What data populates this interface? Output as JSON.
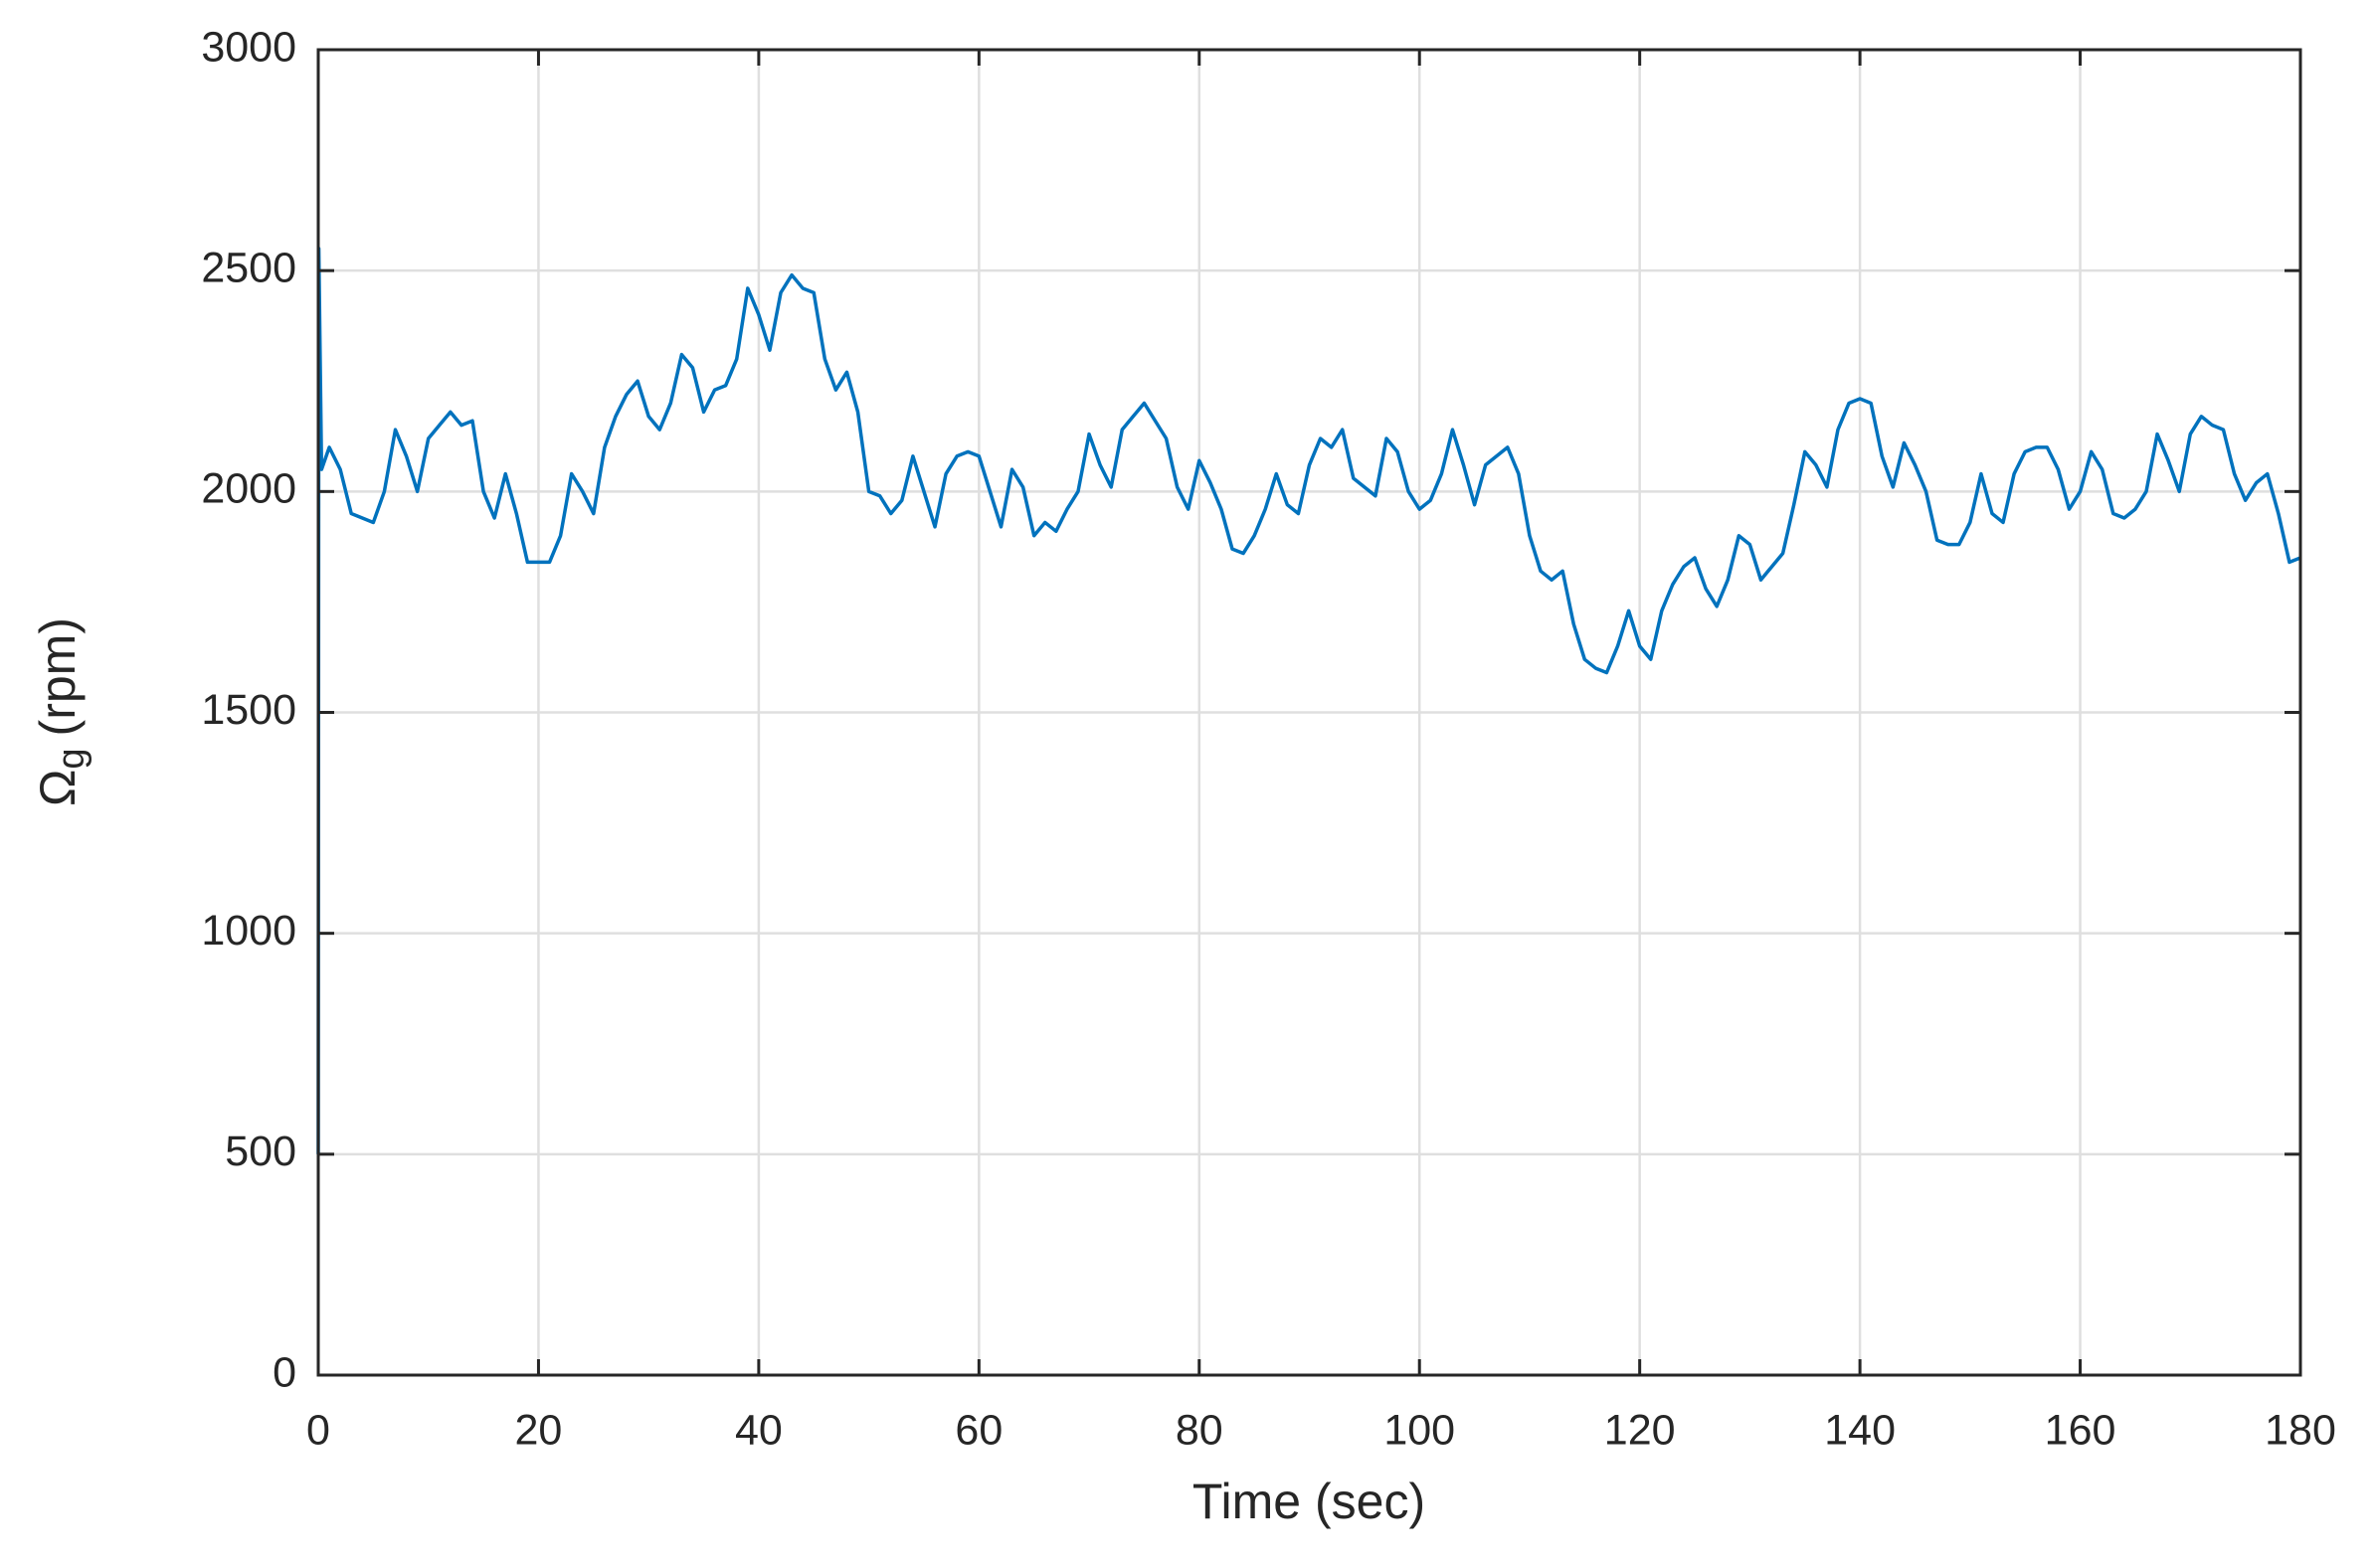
{
  "chart_data": {
    "type": "line",
    "x_label": "Time (sec)",
    "y_label": {
      "symbol": "Ω",
      "subscript": "g",
      "unit": "(rpm)"
    },
    "x": [
      0,
      0.05,
      0.3,
      1,
      2,
      3,
      4,
      5,
      6,
      7,
      8,
      9,
      10,
      11,
      12,
      13,
      14,
      15,
      16,
      17,
      18,
      19,
      20,
      21,
      22,
      23,
      24,
      25,
      26,
      27,
      28,
      29,
      30,
      31,
      32,
      33,
      34,
      35,
      36,
      37,
      38,
      39,
      40,
      41,
      42,
      43,
      44,
      45,
      46,
      47,
      48,
      49,
      50,
      51,
      52,
      53,
      54,
      55,
      56,
      57,
      58,
      59,
      60,
      61,
      62,
      63,
      64,
      65,
      66,
      67,
      68,
      69,
      70,
      71,
      72,
      73,
      74,
      75,
      76,
      77,
      78,
      79,
      80,
      81,
      82,
      83,
      84,
      85,
      86,
      87,
      88,
      89,
      90,
      91,
      92,
      93,
      94,
      95,
      96,
      97,
      98,
      99,
      100,
      101,
      102,
      103,
      104,
      105,
      106,
      107,
      108,
      109,
      110,
      111,
      112,
      113,
      114,
      115,
      116,
      117,
      118,
      119,
      120,
      121,
      122,
      123,
      124,
      125,
      126,
      127,
      128,
      129,
      130,
      131,
      132,
      133,
      134,
      135,
      136,
      137,
      138,
      139,
      140,
      141,
      142,
      143,
      144,
      145,
      146,
      147,
      148,
      149,
      150,
      151,
      152,
      153,
      154,
      155,
      156,
      157,
      158,
      159,
      160,
      161,
      162,
      163,
      164,
      165,
      166,
      167,
      168,
      169,
      170,
      171,
      172,
      173,
      174,
      175,
      176,
      177,
      178,
      179,
      180
    ],
    "series": [
      {
        "color": "#0072bd",
        "values": [
          500,
          2550,
          2050,
          2100,
          2050,
          1950,
          1940,
          1930,
          2000,
          2140,
          2080,
          2000,
          2120,
          2150,
          2180,
          2150,
          2160,
          2000,
          1940,
          2040,
          1950,
          1840,
          1840,
          1840,
          1900,
          2040,
          2000,
          1950,
          2100,
          2170,
          2220,
          2250,
          2170,
          2140,
          2200,
          2310,
          2280,
          2180,
          2230,
          2240,
          2300,
          2460,
          2400,
          2320,
          2450,
          2490,
          2460,
          2450,
          2300,
          2230,
          2270,
          2180,
          2000,
          1990,
          1950,
          1980,
          2080,
          2000,
          1920,
          2040,
          2080,
          2090,
          2080,
          2000,
          1920,
          2050,
          2010,
          1900,
          1930,
          1910,
          1960,
          2000,
          2130,
          2060,
          2010,
          2140,
          2170,
          2200,
          2160,
          2120,
          2010,
          1960,
          2070,
          2020,
          1960,
          1870,
          1860,
          1900,
          1960,
          2040,
          1970,
          1950,
          2060,
          2120,
          2100,
          2140,
          2030,
          2010,
          1990,
          2120,
          2090,
          2000,
          1960,
          1980,
          2040,
          2140,
          2060,
          1970,
          2060,
          2080,
          2100,
          2040,
          1900,
          1820,
          1800,
          1820,
          1700,
          1620,
          1600,
          1590,
          1650,
          1730,
          1650,
          1620,
          1730,
          1790,
          1830,
          1850,
          1780,
          1740,
          1800,
          1900,
          1880,
          1800,
          1830,
          1860,
          1970,
          2090,
          2060,
          2010,
          2140,
          2200,
          2210,
          2200,
          2080,
          2010,
          2110,
          2060,
          2000,
          1890,
          1880,
          1880,
          1930,
          2040,
          1950,
          1930,
          2040,
          2090,
          2100,
          2100,
          2050,
          1960,
          2000,
          2090,
          2050,
          1950,
          1940,
          1960,
          2000,
          2130,
          2070,
          2000,
          2130,
          2170,
          2150,
          2140,
          2040,
          1980,
          2020,
          2040,
          1950,
          1840,
          1850
        ]
      }
    ],
    "xlim": [
      0,
      180
    ],
    "xticks": [
      0,
      20,
      40,
      60,
      80,
      100,
      120,
      140,
      160,
      180
    ],
    "ylim": [
      0,
      3000
    ],
    "yticks": [
      0,
      500,
      1000,
      1500,
      2000,
      2500,
      3000
    ],
    "grid": true
  }
}
